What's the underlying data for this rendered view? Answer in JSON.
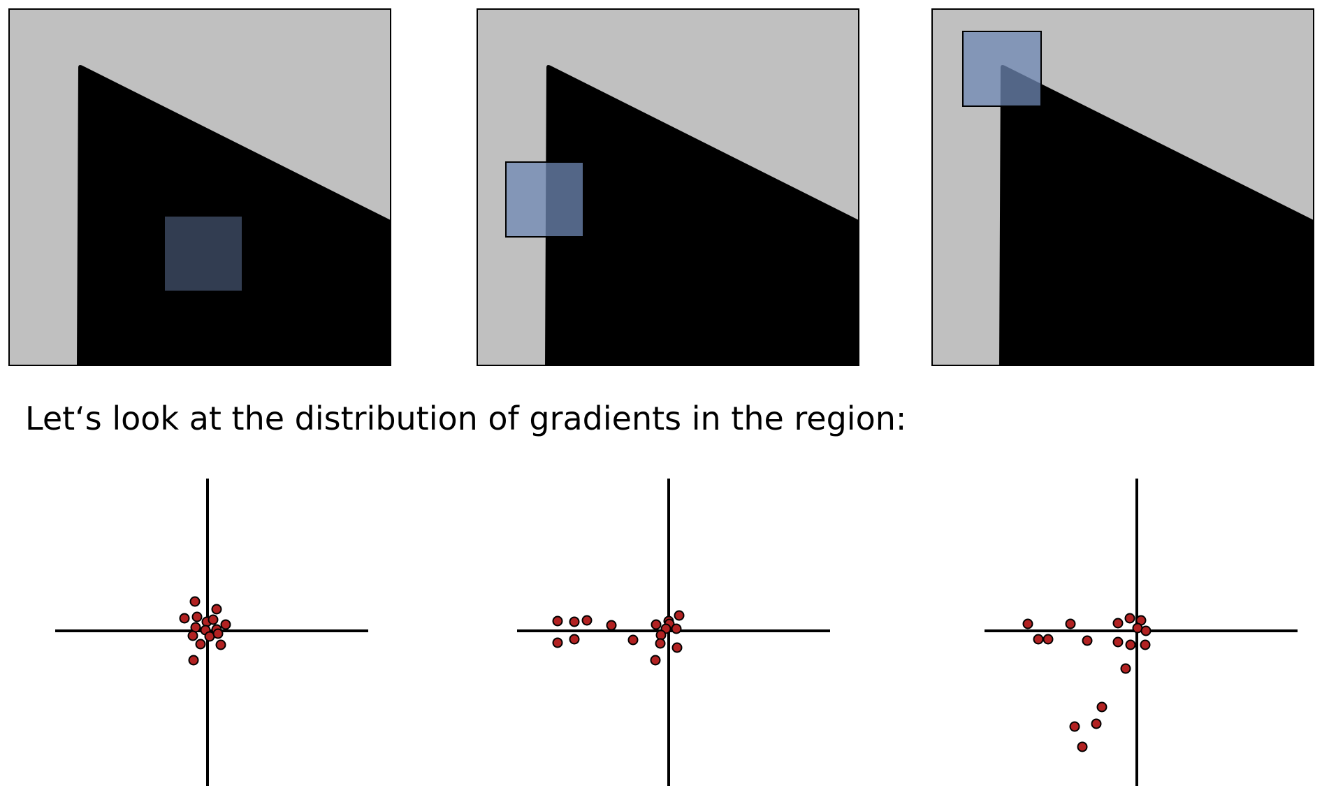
{
  "caption": "Let‘s look at the distribution of gradients in the region:",
  "colors": {
    "background_light": "#c0c0c0",
    "shape_dark": "#000000",
    "window_fill": "#6f88b4",
    "point_fill": "#b22222",
    "point_stroke": "#000000",
    "axis": "#000000"
  },
  "panels": [
    {
      "name": "flat-region",
      "window": "interior of the dark shape"
    },
    {
      "name": "edge-region",
      "window": "straddling the left edge"
    },
    {
      "name": "corner-region",
      "window": "over the top-left corner"
    }
  ],
  "icons": [
    "patch-window-icon",
    "gradient-point-icon"
  ]
}
